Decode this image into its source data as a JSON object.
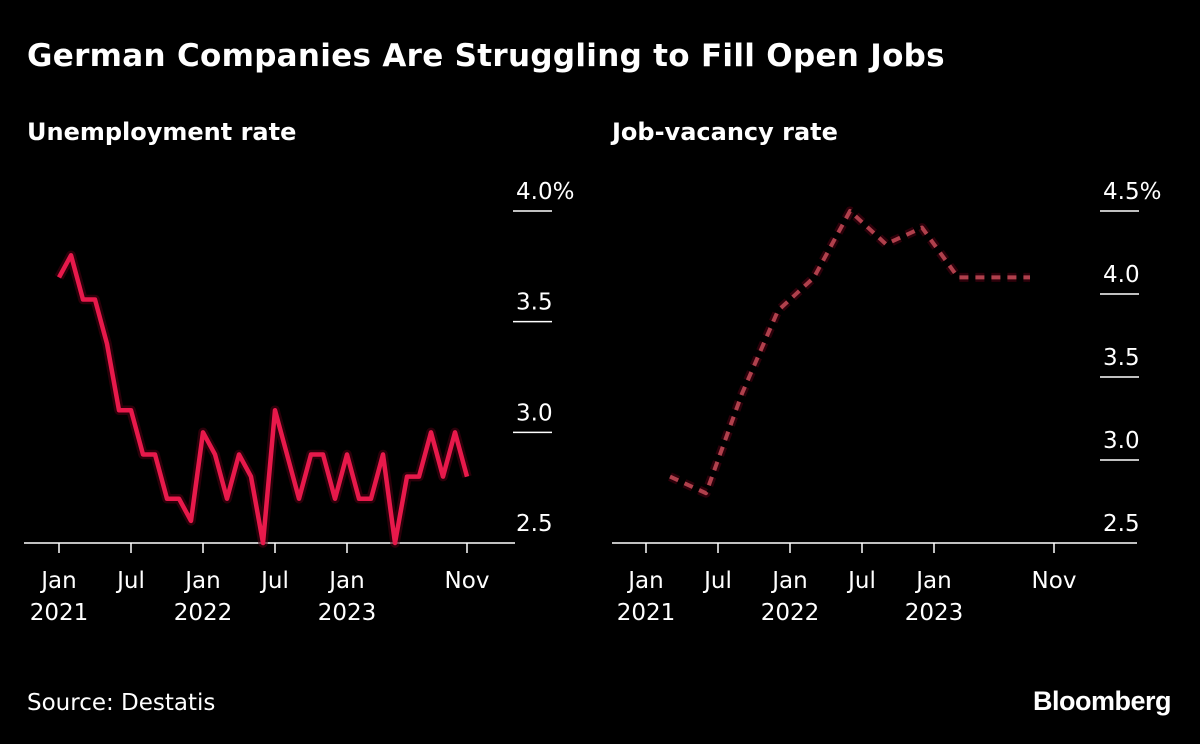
{
  "title": "German Companies Are Struggling to Fill Open Jobs",
  "source": "Source: Destatis",
  "logo": "Bloomberg",
  "colors": {
    "background": "#000000",
    "unemployment_line": "#e8194b",
    "vacancy_line": "#b0404c",
    "text": "#ffffff"
  },
  "chart_data": [
    {
      "type": "line",
      "title": "Unemployment rate",
      "frequency": "monthly",
      "line_style": "solid",
      "x_ticks": [
        {
          "date": "2021-01",
          "label": [
            "Jan",
            "2021"
          ]
        },
        {
          "date": "2021-07",
          "label": [
            "Jul",
            ""
          ]
        },
        {
          "date": "2022-01",
          "label": [
            "Jan",
            "2022"
          ]
        },
        {
          "date": "2022-07",
          "label": [
            "Jul",
            ""
          ]
        },
        {
          "date": "2023-01",
          "label": [
            "Jan",
            "2023"
          ]
        },
        {
          "date": "2023-11",
          "label": [
            "Nov",
            ""
          ]
        }
      ],
      "y_ticks": [
        {
          "value": 2.5,
          "label": "2.5"
        },
        {
          "value": 3.0,
          "label": "3.0"
        },
        {
          "value": 3.5,
          "label": "3.5"
        },
        {
          "value": 4.0,
          "label": "4.0%"
        }
      ],
      "xlim": [
        "2020-11",
        "2024-01"
      ],
      "ylim": [
        2.5,
        4.0
      ],
      "y_axis_position": "right",
      "x": [
        "2021-01",
        "2021-02",
        "2021-03",
        "2021-04",
        "2021-05",
        "2021-06",
        "2021-07",
        "2021-08",
        "2021-09",
        "2021-10",
        "2021-11",
        "2021-12",
        "2022-01",
        "2022-02",
        "2022-03",
        "2022-04",
        "2022-05",
        "2022-06",
        "2022-07",
        "2022-08",
        "2022-09",
        "2022-10",
        "2022-11",
        "2022-12",
        "2023-01",
        "2023-02",
        "2023-03",
        "2023-04",
        "2023-05",
        "2023-06",
        "2023-07",
        "2023-08",
        "2023-09",
        "2023-10",
        "2023-11"
      ],
      "values": [
        3.7,
        3.8,
        3.6,
        3.6,
        3.4,
        3.1,
        3.1,
        2.9,
        2.9,
        2.7,
        2.7,
        2.6,
        3.0,
        2.9,
        2.7,
        2.9,
        2.8,
        2.5,
        3.1,
        2.9,
        2.7,
        2.9,
        2.9,
        2.7,
        2.9,
        2.7,
        2.7,
        2.9,
        2.5,
        2.8,
        2.8,
        3.0,
        2.8,
        3.0,
        2.8
      ]
    },
    {
      "type": "line",
      "title": "Job-vacancy rate",
      "frequency": "quarterly",
      "line_style": "dashed",
      "x_ticks": [
        {
          "date": "2021-01",
          "label": [
            "Jan",
            "2021"
          ]
        },
        {
          "date": "2021-07",
          "label": [
            "Jul",
            ""
          ]
        },
        {
          "date": "2022-01",
          "label": [
            "Jan",
            "2022"
          ]
        },
        {
          "date": "2022-07",
          "label": [
            "Jul",
            ""
          ]
        },
        {
          "date": "2023-01",
          "label": [
            "Jan",
            "2023"
          ]
        },
        {
          "date": "2023-11",
          "label": [
            "Nov",
            ""
          ]
        }
      ],
      "y_ticks": [
        {
          "value": 2.5,
          "label": "2.5"
        },
        {
          "value": 3.0,
          "label": "3.0"
        },
        {
          "value": 3.5,
          "label": "3.5"
        },
        {
          "value": 4.0,
          "label": "4.0"
        },
        {
          "value": 4.5,
          "label": "4.5%"
        }
      ],
      "xlim": [
        "2020-11",
        "2024-01"
      ],
      "ylim": [
        2.5,
        4.5
      ],
      "y_axis_position": "right",
      "x": [
        "2021-03",
        "2021-06",
        "2021-09",
        "2021-12",
        "2022-03",
        "2022-06",
        "2022-09",
        "2022-12",
        "2023-03",
        "2023-06",
        "2023-09"
      ],
      "values": [
        2.9,
        2.8,
        3.4,
        3.9,
        4.1,
        4.5,
        4.3,
        4.4,
        4.1,
        4.1,
        4.1
      ]
    }
  ]
}
